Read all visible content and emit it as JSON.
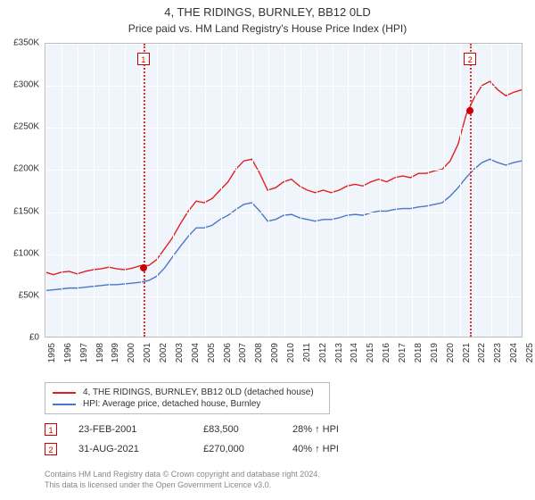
{
  "title": "4, THE RIDINGS, BURNLEY, BB12 0LD",
  "subtitle": "Price paid vs. HM Land Registry's House Price Index (HPI)",
  "chart": {
    "type": "line",
    "background": "#f0f4fb",
    "grid_color": "#ffffff",
    "border_color": "#bbbbbb",
    "ylabel_prefix": "£",
    "ylim": [
      0,
      350000
    ],
    "ytick_step": 50000,
    "yticks": [
      "£0",
      "£50K",
      "£100K",
      "£150K",
      "£200K",
      "£250K",
      "£300K",
      "£350K"
    ],
    "xlim": [
      1995,
      2025
    ],
    "xticks": [
      1995,
      1996,
      1997,
      1998,
      1999,
      2000,
      2001,
      2002,
      2003,
      2004,
      2005,
      2006,
      2007,
      2008,
      2009,
      2010,
      2011,
      2012,
      2013,
      2014,
      2015,
      2016,
      2017,
      2018,
      2019,
      2020,
      2021,
      2022,
      2023,
      2024,
      2025
    ],
    "series": [
      {
        "name": "price_paid",
        "label": "4, THE RIDINGS, BURNLEY, BB12 0LD (detached house)",
        "color": "#e02020",
        "width": 1.4,
        "data": [
          [
            1995.0,
            77000
          ],
          [
            1995.5,
            74000
          ],
          [
            1996.0,
            77000
          ],
          [
            1996.5,
            78000
          ],
          [
            1997.0,
            75000
          ],
          [
            1997.5,
            78000
          ],
          [
            1998.0,
            80000
          ],
          [
            1998.5,
            81000
          ],
          [
            1999.0,
            83000
          ],
          [
            1999.5,
            81000
          ],
          [
            2000.0,
            80000
          ],
          [
            2000.5,
            82000
          ],
          [
            2001.0,
            85000
          ],
          [
            2001.5,
            85000
          ],
          [
            2002.0,
            92000
          ],
          [
            2002.5,
            105000
          ],
          [
            2003.0,
            118000
          ],
          [
            2003.5,
            135000
          ],
          [
            2004.0,
            150000
          ],
          [
            2004.5,
            162000
          ],
          [
            2005.0,
            160000
          ],
          [
            2005.5,
            165000
          ],
          [
            2006.0,
            175000
          ],
          [
            2006.5,
            185000
          ],
          [
            2007.0,
            200000
          ],
          [
            2007.5,
            210000
          ],
          [
            2008.0,
            212000
          ],
          [
            2008.5,
            195000
          ],
          [
            2009.0,
            175000
          ],
          [
            2009.5,
            178000
          ],
          [
            2010.0,
            185000
          ],
          [
            2010.5,
            188000
          ],
          [
            2011.0,
            180000
          ],
          [
            2011.5,
            175000
          ],
          [
            2012.0,
            172000
          ],
          [
            2012.5,
            175000
          ],
          [
            2013.0,
            172000
          ],
          [
            2013.5,
            175000
          ],
          [
            2014.0,
            180000
          ],
          [
            2014.5,
            182000
          ],
          [
            2015.0,
            180000
          ],
          [
            2015.5,
            185000
          ],
          [
            2016.0,
            188000
          ],
          [
            2016.5,
            185000
          ],
          [
            2017.0,
            190000
          ],
          [
            2017.5,
            192000
          ],
          [
            2018.0,
            190000
          ],
          [
            2018.5,
            195000
          ],
          [
            2019.0,
            195000
          ],
          [
            2019.5,
            198000
          ],
          [
            2020.0,
            200000
          ],
          [
            2020.5,
            210000
          ],
          [
            2021.0,
            230000
          ],
          [
            2021.5,
            265000
          ],
          [
            2022.0,
            285000
          ],
          [
            2022.5,
            300000
          ],
          [
            2023.0,
            305000
          ],
          [
            2023.5,
            295000
          ],
          [
            2024.0,
            288000
          ],
          [
            2024.5,
            292000
          ],
          [
            2025.0,
            295000
          ]
        ]
      },
      {
        "name": "hpi",
        "label": "HPI: Average price, detached house, Burnley",
        "color": "#4a78c8",
        "width": 1.4,
        "data": [
          [
            1995.0,
            55000
          ],
          [
            1995.5,
            56000
          ],
          [
            1996.0,
            57000
          ],
          [
            1996.5,
            58000
          ],
          [
            1997.0,
            58000
          ],
          [
            1997.5,
            59000
          ],
          [
            1998.0,
            60000
          ],
          [
            1998.5,
            61000
          ],
          [
            1999.0,
            62000
          ],
          [
            1999.5,
            62000
          ],
          [
            2000.0,
            63000
          ],
          [
            2000.5,
            64000
          ],
          [
            2001.0,
            65000
          ],
          [
            2001.5,
            67000
          ],
          [
            2002.0,
            72000
          ],
          [
            2002.5,
            82000
          ],
          [
            2003.0,
            95000
          ],
          [
            2003.5,
            108000
          ],
          [
            2004.0,
            120000
          ],
          [
            2004.5,
            130000
          ],
          [
            2005.0,
            130000
          ],
          [
            2005.5,
            133000
          ],
          [
            2006.0,
            140000
          ],
          [
            2006.5,
            145000
          ],
          [
            2007.0,
            152000
          ],
          [
            2007.5,
            158000
          ],
          [
            2008.0,
            160000
          ],
          [
            2008.5,
            150000
          ],
          [
            2009.0,
            138000
          ],
          [
            2009.5,
            140000
          ],
          [
            2010.0,
            145000
          ],
          [
            2010.5,
            146000
          ],
          [
            2011.0,
            142000
          ],
          [
            2011.5,
            140000
          ],
          [
            2012.0,
            138000
          ],
          [
            2012.5,
            140000
          ],
          [
            2013.0,
            140000
          ],
          [
            2013.5,
            142000
          ],
          [
            2014.0,
            145000
          ],
          [
            2014.5,
            146000
          ],
          [
            2015.0,
            145000
          ],
          [
            2015.5,
            148000
          ],
          [
            2016.0,
            150000
          ],
          [
            2016.5,
            150000
          ],
          [
            2017.0,
            152000
          ],
          [
            2017.5,
            153000
          ],
          [
            2018.0,
            153000
          ],
          [
            2018.5,
            155000
          ],
          [
            2019.0,
            156000
          ],
          [
            2019.5,
            158000
          ],
          [
            2020.0,
            160000
          ],
          [
            2020.5,
            168000
          ],
          [
            2021.0,
            178000
          ],
          [
            2021.5,
            190000
          ],
          [
            2022.0,
            200000
          ],
          [
            2022.5,
            208000
          ],
          [
            2023.0,
            212000
          ],
          [
            2023.5,
            208000
          ],
          [
            2024.0,
            205000
          ],
          [
            2024.5,
            208000
          ],
          [
            2025.0,
            210000
          ]
        ]
      }
    ],
    "markers": [
      {
        "num": "1",
        "year": 2001.15,
        "box_top": 10,
        "point_value": 83500
      },
      {
        "num": "2",
        "year": 2021.66,
        "box_top": 10,
        "point_value": 270000
      }
    ],
    "marker_color": "#cc0000",
    "marker_line_style": "dotted"
  },
  "legend": {
    "items": [
      {
        "color": "#e02020",
        "label": "4, THE RIDINGS, BURNLEY, BB12 0LD (detached house)"
      },
      {
        "color": "#4a78c8",
        "label": "HPI: Average price, detached house, Burnley"
      }
    ]
  },
  "sales": [
    {
      "num": "1",
      "date": "23-FEB-2001",
      "price": "£83,500",
      "delta": "28% ↑ HPI"
    },
    {
      "num": "2",
      "date": "31-AUG-2021",
      "price": "£270,000",
      "delta": "40% ↑ HPI"
    }
  ],
  "footer": {
    "line1": "Contains HM Land Registry data © Crown copyright and database right 2024.",
    "line2": "This data is licensed under the Open Government Licence v3.0."
  },
  "colors": {
    "text": "#333333",
    "muted": "#888888"
  }
}
